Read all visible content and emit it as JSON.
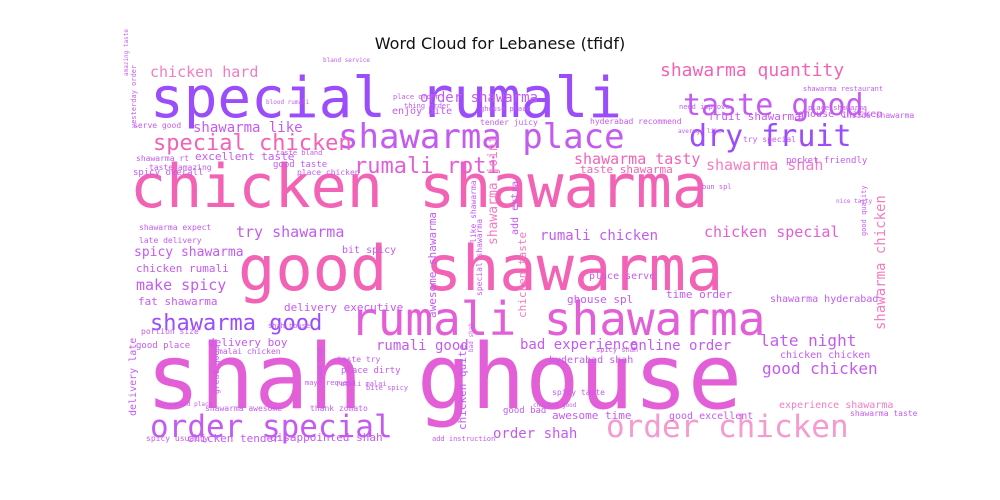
{
  "chart_data": {
    "type": "wordcloud",
    "title": "Word Cloud for Lebanese (tfidf)",
    "palette": [
      "#9b4dfb",
      "#c45bf0",
      "#e35fd7",
      "#f263b5",
      "#f47cc1",
      "#f59bd0"
    ],
    "words": [
      {
        "text": "shah ghouse",
        "weight": 1.0,
        "color": "#e35fd7"
      },
      {
        "text": "chicken shawarma",
        "weight": 0.92,
        "color": "#f263b5"
      },
      {
        "text": "good shawarma",
        "weight": 0.88,
        "color": "#f263b5"
      },
      {
        "text": "special rumali",
        "weight": 0.85,
        "color": "#9b4dfb"
      },
      {
        "text": "rumali shawarma",
        "weight": 0.78,
        "color": "#e35fd7"
      },
      {
        "text": "shawarma place",
        "weight": 0.52,
        "color": "#c45bf0"
      },
      {
        "text": "order special",
        "weight": 0.5,
        "color": "#c45bf0"
      },
      {
        "text": "order chicken",
        "weight": 0.5,
        "color": "#f59bd0"
      },
      {
        "text": "taste good",
        "weight": 0.48,
        "color": "#c45bf0"
      },
      {
        "text": "dry fruit",
        "weight": 0.46,
        "color": "#9b4dfb"
      },
      {
        "text": "rumali roti",
        "weight": 0.4,
        "color": "#e35fd7"
      },
      {
        "text": "shawarma good",
        "weight": 0.38,
        "color": "#9b4dfb"
      },
      {
        "text": "special chicken",
        "weight": 0.36,
        "color": "#f263b5"
      },
      {
        "text": "shawarma quantity",
        "weight": 0.3,
        "color": "#f263b5"
      },
      {
        "text": "chicken hard",
        "weight": 0.26,
        "color": "#f47cc1"
      },
      {
        "text": "order shawarma",
        "weight": 0.24,
        "color": "#c45bf0"
      },
      {
        "text": "shawarma tasty",
        "weight": 0.24,
        "color": "#f263b5"
      },
      {
        "text": "shawarma shah",
        "weight": 0.24,
        "color": "#f47cc1"
      },
      {
        "text": "shawarma like",
        "weight": 0.22,
        "color": "#c45bf0"
      },
      {
        "text": "try shawarma",
        "weight": 0.22,
        "color": "#c45bf0"
      },
      {
        "text": "make spicy",
        "weight": 0.22,
        "color": "#c45bf0"
      },
      {
        "text": "rumali chicken",
        "weight": 0.22,
        "color": "#c45bf0"
      },
      {
        "text": "chicken special",
        "weight": 0.22,
        "color": "#e35fd7"
      },
      {
        "text": "bad experience",
        "weight": 0.22,
        "color": "#c45bf0"
      },
      {
        "text": "online order",
        "weight": 0.22,
        "color": "#c45bf0"
      },
      {
        "text": "late night",
        "weight": 0.22,
        "color": "#c45bf0"
      },
      {
        "text": "good chicken",
        "weight": 0.22,
        "color": "#c45bf0"
      },
      {
        "text": "rumali good",
        "weight": 0.2,
        "color": "#c45bf0"
      },
      {
        "text": "order shah",
        "weight": 0.2,
        "color": "#c45bf0"
      },
      {
        "text": "shawarma chicken",
        "weight": 0.18,
        "color": "#f47cc1"
      },
      {
        "text": "taste shawarma",
        "weight": 0.18,
        "color": "#f263b5"
      },
      {
        "text": "shawarma joint",
        "weight": 0.16,
        "color": "#f47cc1"
      },
      {
        "text": "spicy shawarma",
        "weight": 0.16,
        "color": "#c45bf0"
      },
      {
        "text": "chicken rumali",
        "weight": 0.14,
        "color": "#c45bf0"
      },
      {
        "text": "fruit shawarma",
        "weight": 0.14,
        "color": "#c45bf0"
      },
      {
        "text": "fat shawarma",
        "weight": 0.12,
        "color": "#c45bf0"
      },
      {
        "text": "excellent taste",
        "weight": 0.12,
        "color": "#c45bf0"
      },
      {
        "text": "delivery executive",
        "weight": 0.12,
        "color": "#c45bf0"
      },
      {
        "text": "delivery boy",
        "weight": 0.12,
        "color": "#c45bf0"
      },
      {
        "text": "time order",
        "weight": 0.12,
        "color": "#c45bf0"
      },
      {
        "text": "ghouse spl",
        "weight": 0.12,
        "color": "#c45bf0"
      },
      {
        "text": "ghouse chicken",
        "weight": 0.12,
        "color": "#c45bf0"
      },
      {
        "text": "awesome shawarma",
        "weight": 0.12,
        "color": "#c45bf0"
      },
      {
        "text": "chicken taste",
        "weight": 0.12,
        "color": "#f47cc1"
      },
      {
        "text": "chicken quite",
        "weight": 0.12,
        "color": "#c45bf0"
      },
      {
        "text": "awesome time",
        "weight": 0.12,
        "color": "#c45bf0"
      },
      {
        "text": "chicken tender",
        "weight": 0.12,
        "color": "#c45bf0"
      },
      {
        "text": "disappointed shah",
        "weight": 0.12,
        "color": "#c45bf0"
      },
      {
        "text": "bit spicy",
        "weight": 0.1,
        "color": "#c45bf0"
      },
      {
        "text": "add extra",
        "weight": 0.1,
        "color": "#c45bf0"
      },
      {
        "text": "delivery late",
        "weight": 0.1,
        "color": "#c45bf0"
      },
      {
        "text": "chicken chicken",
        "weight": 0.1,
        "color": "#c45bf0"
      },
      {
        "text": "shawarma hyderabad",
        "weight": 0.1,
        "color": "#c45bf0"
      },
      {
        "text": "experience shawarma",
        "weight": 0.1,
        "color": "#f47cc1"
      },
      {
        "text": "good excellent",
        "weight": 0.1,
        "color": "#c45bf0"
      },
      {
        "text": "good bad",
        "weight": 0.08,
        "color": "#c45bf0"
      },
      {
        "text": "place serve",
        "weight": 0.08,
        "color": "#c45bf0"
      },
      {
        "text": "good place",
        "weight": 0.08,
        "color": "#c45bf0"
      },
      {
        "text": "enjoy bite",
        "weight": 0.08,
        "color": "#c45bf0"
      },
      {
        "text": "good taste",
        "weight": 0.08,
        "color": "#c45bf0"
      },
      {
        "text": "spicy overall",
        "weight": 0.08,
        "color": "#c45bf0"
      },
      {
        "text": "serve good",
        "weight": 0.07,
        "color": "#c45bf0"
      },
      {
        "text": "taste bland",
        "weight": 0.07,
        "color": "#c45bf0"
      },
      {
        "text": "rumali malai",
        "weight": 0.07,
        "color": "#c45bf0"
      },
      {
        "text": "like shawarma",
        "weight": 0.07,
        "color": "#c45bf0"
      },
      {
        "text": "special shawarma",
        "weight": 0.07,
        "color": "#c45bf0"
      },
      {
        "text": "hyderabad shah",
        "weight": 0.07,
        "color": "#c45bf0"
      },
      {
        "text": "place dirty",
        "weight": 0.07,
        "color": "#c45bf0"
      },
      {
        "text": "taste try",
        "weight": 0.07,
        "color": "#c45bf0"
      },
      {
        "text": "shawarma awesome",
        "weight": 0.07,
        "color": "#c45bf0"
      },
      {
        "text": "thank zomato",
        "weight": 0.07,
        "color": "#c45bf0"
      },
      {
        "text": "great good",
        "weight": 0.07,
        "color": "#c45bf0"
      },
      {
        "text": "malai chicken",
        "weight": 0.07,
        "color": "#c45bf0"
      },
      {
        "text": "portion size",
        "weight": 0.07,
        "color": "#c45bf0"
      },
      {
        "text": "shah house",
        "weight": 0.07,
        "color": "#c45bf0"
      },
      {
        "text": "tender juicy",
        "weight": 0.07,
        "color": "#c45bf0"
      },
      {
        "text": "place order",
        "weight": 0.07,
        "color": "#c45bf0"
      },
      {
        "text": "mayo request",
        "weight": 0.07,
        "color": "#c45bf0"
      },
      {
        "text": "spicy taste",
        "weight": 0.07,
        "color": "#c45bf0"
      },
      {
        "text": "place shawarma",
        "weight": 0.07,
        "color": "#c45bf0"
      },
      {
        "text": "inside shawarma",
        "weight": 0.07,
        "color": "#c45bf0"
      },
      {
        "text": "pocket friendly",
        "weight": 0.07,
        "color": "#c45bf0"
      },
      {
        "text": "try special",
        "weight": 0.07,
        "color": "#c45bf0"
      },
      {
        "text": "need improve",
        "weight": 0.07,
        "color": "#c45bf0"
      },
      {
        "text": "shawarma restaurant",
        "weight": 0.07,
        "color": "#c45bf0"
      },
      {
        "text": "hyderabad recommend",
        "weight": 0.07,
        "color": "#c45bf0"
      },
      {
        "text": "spicy usually",
        "weight": 0.07,
        "color": "#c45bf0"
      },
      {
        "text": "add instruction",
        "weight": 0.07,
        "color": "#c45bf0"
      },
      {
        "text": "ghouse place",
        "weight": 0.07,
        "color": "#c45bf0"
      },
      {
        "text": "spicy shah",
        "weight": 0.07,
        "color": "#c45bf0"
      },
      {
        "text": "shawarma taste",
        "weight": 0.07,
        "color": "#c45bf0"
      },
      {
        "text": "chicken good",
        "weight": 0.07,
        "color": "#c45bf0"
      },
      {
        "text": "amazing taste",
        "weight": 0.06,
        "color": "#c45bf0"
      },
      {
        "text": "taste amazing",
        "weight": 0.06,
        "color": "#c45bf0"
      },
      {
        "text": "shawarma expect",
        "weight": 0.06,
        "color": "#c45bf0"
      },
      {
        "text": "yesterday order",
        "weight": 0.06,
        "color": "#c45bf0"
      },
      {
        "text": "bun spl",
        "weight": 0.06,
        "color": "#c45bf0"
      },
      {
        "text": "good quality",
        "weight": 0.06,
        "color": "#c45bf0"
      },
      {
        "text": "bad shah",
        "weight": 0.06,
        "color": "#c45bf0"
      },
      {
        "text": "late delivery",
        "weight": 0.06,
        "color": "#c45bf0"
      },
      {
        "text": "shawarma rt",
        "weight": 0.06,
        "color": "#c45bf0"
      },
      {
        "text": "place chicken",
        "weight": 0.06,
        "color": "#c45bf0"
      },
      {
        "text": "blood rumali",
        "weight": 0.06,
        "color": "#c45bf0"
      },
      {
        "text": "bite spicy",
        "weight": 0.06,
        "color": "#c45bf0"
      },
      {
        "text": "good food",
        "weight": 0.06,
        "color": "#c45bf0"
      },
      {
        "text": "bland service",
        "weight": 0.06,
        "color": "#c45bf0"
      },
      {
        "text": "thing order",
        "weight": 0.06,
        "color": "#c45bf0"
      },
      {
        "text": "average like",
        "weight": 0.06,
        "color": "#c45bf0"
      },
      {
        "text": "nice tasty",
        "weight": 0.06,
        "color": "#c45bf0"
      },
      {
        "text": "recommend place",
        "weight": 0.06,
        "color": "#c45bf0"
      }
    ]
  }
}
